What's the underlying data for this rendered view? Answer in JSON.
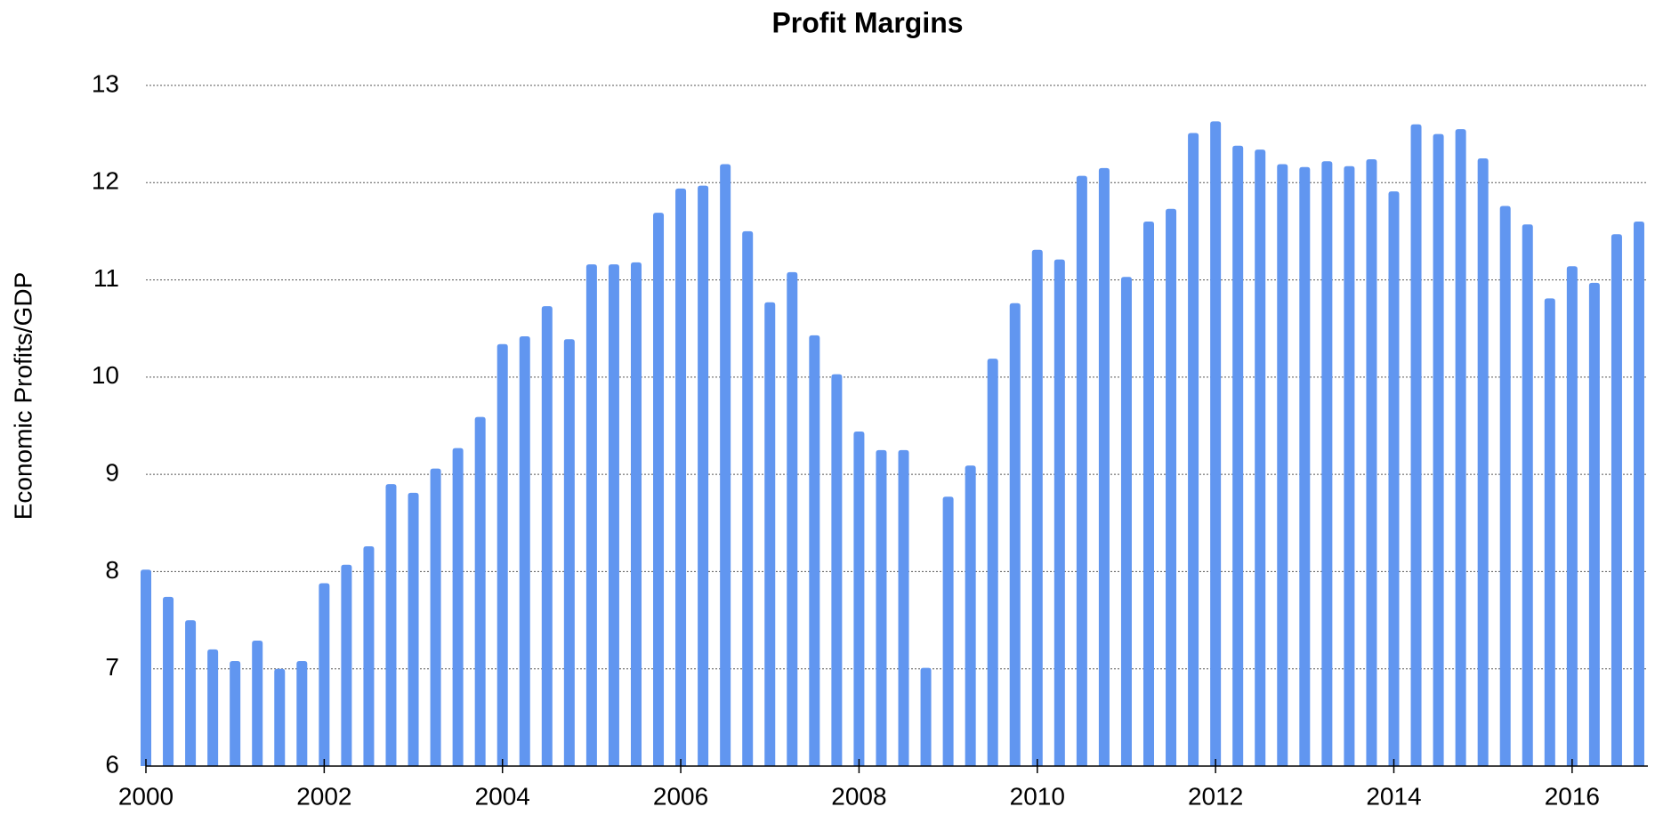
{
  "chart_data": {
    "type": "bar",
    "title": "Profit Margins",
    "y_label": "Economic Profits/GDP",
    "x": [
      2000,
      2000.25,
      2000.5,
      2000.75,
      2001,
      2001.25,
      2001.5,
      2001.75,
      2002,
      2002.25,
      2002.5,
      2002.75,
      2003,
      2003.25,
      2003.5,
      2003.75,
      2004,
      2004.25,
      2004.5,
      2004.75,
      2005,
      2005.25,
      2005.5,
      2005.75,
      2006,
      2006.25,
      2006.5,
      2006.75,
      2007,
      2007.25,
      2007.5,
      2007.75,
      2008,
      2008.25,
      2008.5,
      2008.75,
      2009,
      2009.25,
      2009.5,
      2009.75,
      2010,
      2010.25,
      2010.5,
      2010.75,
      2011,
      2011.25,
      2011.5,
      2011.75,
      2012,
      2012.25,
      2012.5,
      2012.75,
      2013,
      2013.25,
      2013.5,
      2013.75,
      2014,
      2014.25,
      2014.5,
      2014.75,
      2015,
      2015.25,
      2015.5,
      2015.75,
      2016,
      2016.25,
      2016.5,
      2016.75
    ],
    "values": [
      8.02,
      7.74,
      7.5,
      7.2,
      7.08,
      7.29,
      7.0,
      7.08,
      7.88,
      8.07,
      8.26,
      8.9,
      8.81,
      9.06,
      9.27,
      9.59,
      10.34,
      10.42,
      10.73,
      10.39,
      11.16,
      11.16,
      11.18,
      11.69,
      11.94,
      11.97,
      12.19,
      11.5,
      10.77,
      11.08,
      10.43,
      10.03,
      9.44,
      9.25,
      9.25,
      7.01,
      8.77,
      9.09,
      10.19,
      10.76,
      11.31,
      11.21,
      12.07,
      12.15,
      11.03,
      11.6,
      11.73,
      12.51,
      12.63,
      12.38,
      12.34,
      12.19,
      12.16,
      12.22,
      12.17,
      12.24,
      11.91,
      12.6,
      12.5,
      12.55,
      12.25,
      11.76,
      11.57,
      10.81,
      11.14,
      10.97,
      11.47,
      11.6
    ],
    "color": "#6196f0",
    "xlim": [
      2000,
      2016.85
    ],
    "xticks": [
      2000,
      2002,
      2004,
      2006,
      2008,
      2010,
      2012,
      2014,
      2016
    ],
    "ylim": [
      6,
      13
    ],
    "yticks": [
      6,
      7,
      8,
      9,
      10,
      11,
      12,
      13
    ],
    "grid": true
  }
}
